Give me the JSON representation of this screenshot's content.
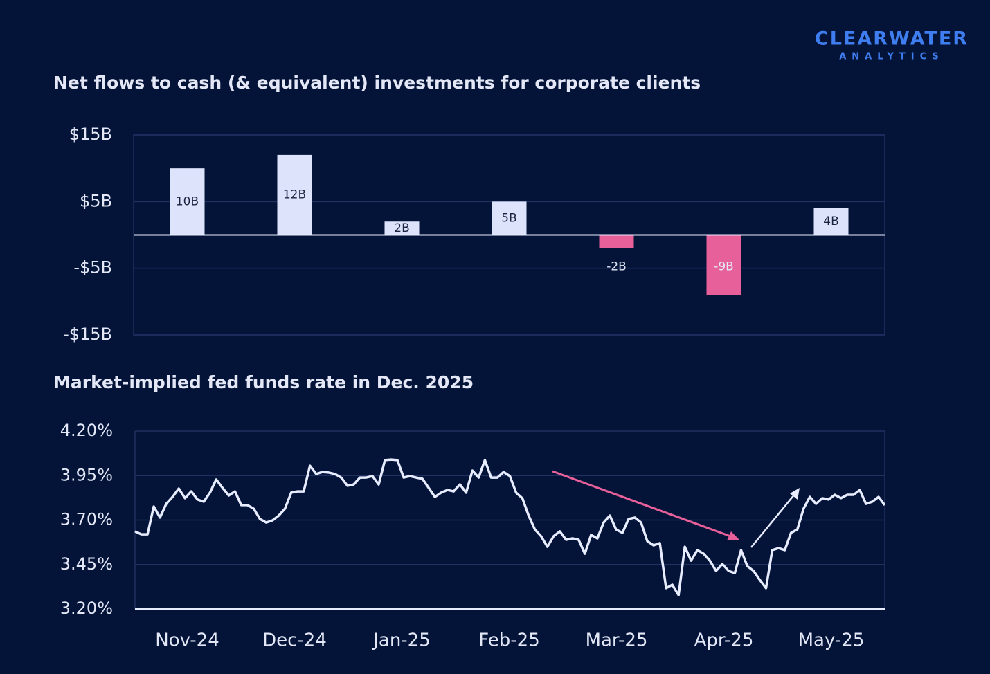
{
  "brand": {
    "name": "CLEARWATER",
    "tagline": "ANALYTICS"
  },
  "chart_data": [
    {
      "type": "bar",
      "title": "Net flows to cash (& equivalent) investments for corporate clients",
      "categories": [
        "Nov-24",
        "Dec-24",
        "Jan-25",
        "Feb-25",
        "Mar-25",
        "Apr-25",
        "May-25"
      ],
      "values": [
        10,
        12,
        2,
        5,
        -2,
        -9,
        4
      ],
      "value_labels": [
        "10B",
        "12B",
        "2B",
        "5B",
        "-2B",
        "-9B",
        "4B"
      ],
      "color": "#dde3fb",
      "negative_color": "#e8609a",
      "ylim": [
        -15,
        15
      ],
      "yticks": [
        {
          "value": -15,
          "label": "-$15B"
        },
        {
          "value": -5,
          "label": "-$5B"
        },
        {
          "value": 5,
          "label": "$5B"
        },
        {
          "value": 15,
          "label": "$15B"
        }
      ],
      "grid": true
    },
    {
      "type": "line",
      "title": "Market-implied fed funds rate in Dec. 2025",
      "color": "#e8ecff",
      "values": [
        3.636,
        3.62,
        3.62,
        3.776,
        3.714,
        3.791,
        3.83,
        3.877,
        3.823,
        3.861,
        3.815,
        3.803,
        3.854,
        3.928,
        3.881,
        3.838,
        3.861,
        3.784,
        3.784,
        3.764,
        3.706,
        3.686,
        3.698,
        3.725,
        3.764,
        3.854,
        3.861,
        3.861,
        4.005,
        3.959,
        3.97,
        3.967,
        3.959,
        3.939,
        3.893,
        3.9,
        3.939,
        3.939,
        3.947,
        3.9,
        4.037,
        4.04,
        4.037,
        3.939,
        3.947,
        3.939,
        3.932,
        3.881,
        3.83,
        3.854,
        3.869,
        3.861,
        3.9,
        3.854,
        3.978,
        3.939,
        4.037,
        3.939,
        3.939,
        3.97,
        3.947,
        3.854,
        3.823,
        3.725,
        3.647,
        3.609,
        3.55,
        3.609,
        3.636,
        3.589,
        3.597,
        3.589,
        3.511,
        3.616,
        3.597,
        3.686,
        3.725,
        3.647,
        3.628,
        3.706,
        3.714,
        3.686,
        3.581,
        3.558,
        3.57,
        3.317,
        3.336,
        3.278,
        3.55,
        3.472,
        3.531,
        3.511,
        3.472,
        3.414,
        3.453,
        3.414,
        3.402,
        3.531,
        3.441,
        3.414,
        3.363,
        3.317,
        3.531,
        3.542,
        3.531,
        3.628,
        3.647,
        3.764,
        3.83,
        3.791,
        3.823,
        3.815,
        3.842,
        3.823,
        3.842,
        3.842,
        3.869,
        3.791,
        3.803,
        3.83,
        3.784
      ],
      "ylim": [
        3.2,
        4.2
      ],
      "yticks": [
        {
          "value": 3.2,
          "label": "3.20%"
        },
        {
          "value": 3.45,
          "label": "3.45%"
        },
        {
          "value": 3.7,
          "label": "3.70%"
        },
        {
          "value": 3.95,
          "label": "3.95%"
        },
        {
          "value": 4.2,
          "label": "4.20%"
        }
      ],
      "grid": true
    }
  ]
}
